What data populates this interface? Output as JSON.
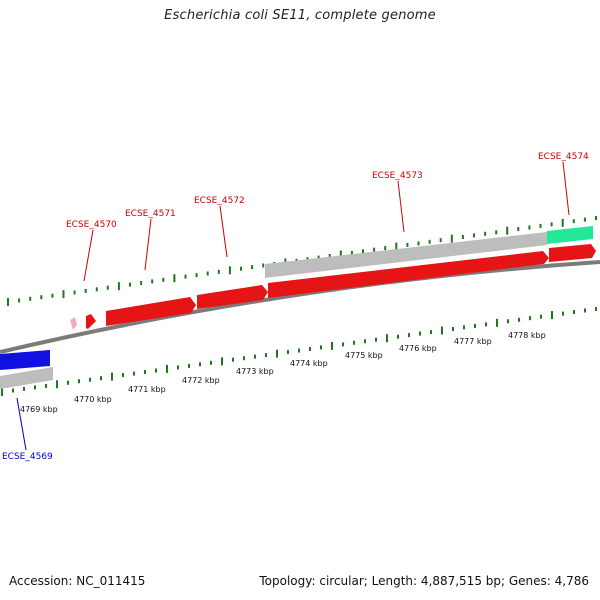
{
  "title": "Escherichia coli SE11, complete genome",
  "footer": {
    "accession": "Accession: NC_011415",
    "summary": "Topology: circular; Length: 4,887,515 bp; Genes: 4,786"
  },
  "colors": {
    "forward_gene": "#e51515",
    "reverse_gene": "#1010e0",
    "pseudo_gene": "#bdbdbd",
    "rna_gene": "#22e898",
    "small_feature": "#f7a7c8",
    "tick": "#1b7a1b",
    "axis": "#777777",
    "forward_label": "#cc0000",
    "reverse_label": "#0000cc"
  },
  "scale_labels": [
    "4769 kbp",
    "4770 kbp",
    "4771 kbp",
    "4772 kbp",
    "4773 kbp",
    "4774 kbp",
    "4775 kbp",
    "4776 kbp",
    "4777 kbp",
    "4778 kbp"
  ],
  "genes": [
    {
      "name": "ECSE_4569",
      "strand": "reverse"
    },
    {
      "name": "ECSE_4570",
      "strand": "forward"
    },
    {
      "name": "ECSE_4571",
      "strand": "forward"
    },
    {
      "name": "ECSE_4572",
      "strand": "forward"
    },
    {
      "name": "ECSE_4573",
      "strand": "forward"
    },
    {
      "name": "ECSE_4574",
      "strand": "forward"
    }
  ]
}
